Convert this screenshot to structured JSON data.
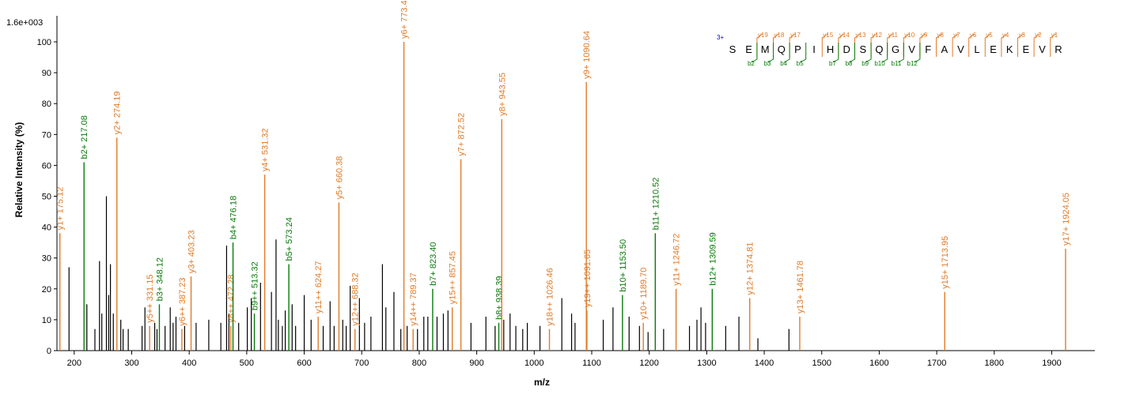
{
  "colors": {
    "y_ion": "#e07b28",
    "b_ion": "#0a7a0a",
    "unassigned": "#000000",
    "charge": "#0000cc"
  },
  "chart_data": {
    "type": "bar",
    "max_intensity_label": "1.6e+003",
    "xlabel": "m/z",
    "ylabel": "Relative  Intensity (%)",
    "xlim": [
      170,
      1975
    ],
    "ylim": [
      0,
      100
    ],
    "x_ticks": [
      200,
      300,
      400,
      500,
      600,
      700,
      800,
      900,
      1000,
      1100,
      1200,
      1300,
      1400,
      1500,
      1600,
      1700,
      1800,
      1900
    ],
    "y_ticks": [
      0,
      10,
      20,
      30,
      40,
      50,
      60,
      70,
      80,
      90,
      100
    ],
    "annotated_peaks": [
      {
        "label": "y1+ 175.12",
        "mz": 175.12,
        "intensity": 38,
        "ion": "y"
      },
      {
        "label": "b2+ 217.08",
        "mz": 217.08,
        "intensity": 61,
        "ion": "b"
      },
      {
        "label": "y2+ 274.19",
        "mz": 274.19,
        "intensity": 69,
        "ion": "y"
      },
      {
        "label": "y5++ 331.15",
        "mz": 331.15,
        "intensity": 8,
        "ion": "y"
      },
      {
        "label": "b3+ 348.12",
        "mz": 348.12,
        "intensity": 15,
        "ion": "b"
      },
      {
        "label": "y6++ 387.23",
        "mz": 387.23,
        "intensity": 7,
        "ion": "y"
      },
      {
        "label": "y3+ 403.23",
        "mz": 403.23,
        "intensity": 24,
        "ion": "y"
      },
      {
        "label": "y8++ 472.28",
        "mz": 472.28,
        "intensity": 8,
        "ion": "y"
      },
      {
        "label": "b4+ 476.18",
        "mz": 476.18,
        "intensity": 35,
        "ion": "b"
      },
      {
        "label": "b9++ 513.32",
        "mz": 513.32,
        "intensity": 12,
        "ion": "b"
      },
      {
        "label": "y4+ 531.32",
        "mz": 531.32,
        "intensity": 57,
        "ion": "y"
      },
      {
        "label": "b5+ 573.24",
        "mz": 573.24,
        "intensity": 28,
        "ion": "b"
      },
      {
        "label": "y11++ 624.27",
        "mz": 624.27,
        "intensity": 11,
        "ion": "y"
      },
      {
        "label": "y5+ 660.38",
        "mz": 660.38,
        "intensity": 48,
        "ion": "y"
      },
      {
        "label": "y12++ 688.32",
        "mz": 688.32,
        "intensity": 7,
        "ion": "y"
      },
      {
        "label": "y6+ 773.4",
        "mz": 773.4,
        "intensity": 100,
        "ion": "y"
      },
      {
        "label": "y14++ 789.37",
        "mz": 789.37,
        "intensity": 7,
        "ion": "y"
      },
      {
        "label": "b7+ 823.40",
        "mz": 823.4,
        "intensity": 20,
        "ion": "b"
      },
      {
        "label": "y15++ 857.45",
        "mz": 857.45,
        "intensity": 14,
        "ion": "y"
      },
      {
        "label": "y7+ 872.52",
        "mz": 872.52,
        "intensity": 62,
        "ion": "y"
      },
      {
        "label": "b8+ 938.39",
        "mz": 938.39,
        "intensity": 9,
        "ion": "b"
      },
      {
        "label": "y8+ 943.55",
        "mz": 943.55,
        "intensity": 75,
        "ion": "y"
      },
      {
        "label": "y18++ 1026.46",
        "mz": 1026.46,
        "intensity": 7,
        "ion": "y"
      },
      {
        "label": "y9+ 1090.64",
        "mz": 1090.64,
        "intensity": 87,
        "ion": "y"
      },
      {
        "label": "y19++ 1091.65",
        "mz": 1091.65,
        "intensity": 13,
        "ion": "y"
      },
      {
        "label": "b10+ 1153.50",
        "mz": 1153.5,
        "intensity": 18,
        "ion": "b"
      },
      {
        "label": "y10+ 1189.70",
        "mz": 1189.7,
        "intensity": 9,
        "ion": "y"
      },
      {
        "label": "b11+ 1210.52",
        "mz": 1210.52,
        "intensity": 38,
        "ion": "b"
      },
      {
        "label": "y11+ 1246.72",
        "mz": 1246.72,
        "intensity": 20,
        "ion": "y"
      },
      {
        "label": "b12+ 1309.59",
        "mz": 1309.59,
        "intensity": 20,
        "ion": "b"
      },
      {
        "label": "y12+ 1374.81",
        "mz": 1374.81,
        "intensity": 17,
        "ion": "y"
      },
      {
        "label": "y13+ 1461.78",
        "mz": 1461.78,
        "intensity": 11,
        "ion": "y"
      },
      {
        "label": "y15+ 1713.95",
        "mz": 1713.95,
        "intensity": 19,
        "ion": "y"
      },
      {
        "label": "y17+ 1924.05",
        "mz": 1924.05,
        "intensity": 33,
        "ion": "y"
      }
    ],
    "unassigned_peaks": [
      {
        "mz": 191,
        "intensity": 27
      },
      {
        "mz": 222,
        "intensity": 15
      },
      {
        "mz": 236,
        "intensity": 7
      },
      {
        "mz": 244,
        "intensity": 29
      },
      {
        "mz": 248,
        "intensity": 12
      },
      {
        "mz": 256,
        "intensity": 50
      },
      {
        "mz": 260,
        "intensity": 18
      },
      {
        "mz": 263,
        "intensity": 28
      },
      {
        "mz": 268,
        "intensity": 12
      },
      {
        "mz": 281,
        "intensity": 10
      },
      {
        "mz": 285,
        "intensity": 7
      },
      {
        "mz": 294,
        "intensity": 7
      },
      {
        "mz": 318,
        "intensity": 8
      },
      {
        "mz": 323,
        "intensity": 14
      },
      {
        "mz": 340,
        "intensity": 9
      },
      {
        "mz": 344,
        "intensity": 7
      },
      {
        "mz": 358,
        "intensity": 8
      },
      {
        "mz": 367,
        "intensity": 14
      },
      {
        "mz": 372,
        "intensity": 9
      },
      {
        "mz": 377,
        "intensity": 11
      },
      {
        "mz": 392,
        "intensity": 8
      },
      {
        "mz": 412,
        "intensity": 9
      },
      {
        "mz": 434,
        "intensity": 10
      },
      {
        "mz": 455,
        "intensity": 9
      },
      {
        "mz": 465,
        "intensity": 34
      },
      {
        "mz": 469,
        "intensity": 12
      },
      {
        "mz": 486,
        "intensity": 9
      },
      {
        "mz": 501,
        "intensity": 14
      },
      {
        "mz": 508,
        "intensity": 17
      },
      {
        "mz": 524,
        "intensity": 22
      },
      {
        "mz": 543,
        "intensity": 19
      },
      {
        "mz": 551,
        "intensity": 36
      },
      {
        "mz": 555,
        "intensity": 10
      },
      {
        "mz": 562,
        "intensity": 8
      },
      {
        "mz": 567,
        "intensity": 13
      },
      {
        "mz": 579,
        "intensity": 15
      },
      {
        "mz": 585,
        "intensity": 8
      },
      {
        "mz": 600,
        "intensity": 18
      },
      {
        "mz": 612,
        "intensity": 10
      },
      {
        "mz": 633,
        "intensity": 8
      },
      {
        "mz": 645,
        "intensity": 16
      },
      {
        "mz": 652,
        "intensity": 8
      },
      {
        "mz": 667,
        "intensity": 10
      },
      {
        "mz": 673,
        "intensity": 8
      },
      {
        "mz": 680,
        "intensity": 21
      },
      {
        "mz": 696,
        "intensity": 17
      },
      {
        "mz": 705,
        "intensity": 9
      },
      {
        "mz": 716,
        "intensity": 11
      },
      {
        "mz": 736,
        "intensity": 28
      },
      {
        "mz": 742,
        "intensity": 14
      },
      {
        "mz": 756,
        "intensity": 19
      },
      {
        "mz": 768,
        "intensity": 7
      },
      {
        "mz": 779,
        "intensity": 8
      },
      {
        "mz": 797,
        "intensity": 7
      },
      {
        "mz": 808,
        "intensity": 11
      },
      {
        "mz": 815,
        "intensity": 11
      },
      {
        "mz": 831,
        "intensity": 11
      },
      {
        "mz": 842,
        "intensity": 12
      },
      {
        "mz": 850,
        "intensity": 13
      },
      {
        "mz": 890,
        "intensity": 9
      },
      {
        "mz": 916,
        "intensity": 11
      },
      {
        "mz": 932,
        "intensity": 8
      },
      {
        "mz": 947,
        "intensity": 10
      },
      {
        "mz": 958,
        "intensity": 12
      },
      {
        "mz": 968,
        "intensity": 8
      },
      {
        "mz": 980,
        "intensity": 7
      },
      {
        "mz": 988,
        "intensity": 9
      },
      {
        "mz": 1010,
        "intensity": 8
      },
      {
        "mz": 1048,
        "intensity": 17
      },
      {
        "mz": 1065,
        "intensity": 12
      },
      {
        "mz": 1071,
        "intensity": 9
      },
      {
        "mz": 1120,
        "intensity": 10
      },
      {
        "mz": 1137,
        "intensity": 14
      },
      {
        "mz": 1165,
        "intensity": 11
      },
      {
        "mz": 1183,
        "intensity": 8
      },
      {
        "mz": 1198,
        "intensity": 6
      },
      {
        "mz": 1225,
        "intensity": 7
      },
      {
        "mz": 1270,
        "intensity": 8
      },
      {
        "mz": 1283,
        "intensity": 10
      },
      {
        "mz": 1290,
        "intensity": 14
      },
      {
        "mz": 1298,
        "intensity": 9
      },
      {
        "mz": 1333,
        "intensity": 8
      },
      {
        "mz": 1356,
        "intensity": 11
      },
      {
        "mz": 1389,
        "intensity": 4
      },
      {
        "mz": 1443,
        "intensity": 7
      }
    ],
    "sequence": {
      "charge": "3+",
      "residues": [
        "S",
        "E",
        "M",
        "Q",
        "P",
        "I",
        "H",
        "D",
        "S",
        "Q",
        "G",
        "V",
        "F",
        "A",
        "V",
        "L",
        "E",
        "K",
        "E",
        "V",
        "R"
      ],
      "y_ions": [
        {
          "after": 2,
          "label": "y19"
        },
        {
          "after": 3,
          "label": "y18"
        },
        {
          "after": 4,
          "label": "y17"
        },
        {
          "after": 6,
          "label": "y15"
        },
        {
          "after": 7,
          "label": "y14"
        },
        {
          "after": 8,
          "label": "y13"
        },
        {
          "after": 9,
          "label": "y12"
        },
        {
          "after": 10,
          "label": "y11"
        },
        {
          "after": 11,
          "label": "y10"
        },
        {
          "after": 12,
          "label": "y9"
        },
        {
          "after": 13,
          "label": "y8"
        },
        {
          "after": 14,
          "label": "y7"
        },
        {
          "after": 15,
          "label": "y6"
        },
        {
          "after": 16,
          "label": "y5"
        },
        {
          "after": 17,
          "label": "y4"
        },
        {
          "after": 18,
          "label": "y3"
        },
        {
          "after": 19,
          "label": "y2"
        },
        {
          "after": 20,
          "label": "y1"
        }
      ],
      "b_ions": [
        {
          "after": 2,
          "label": "b2"
        },
        {
          "after": 3,
          "label": "b3"
        },
        {
          "after": 4,
          "label": "b4"
        },
        {
          "after": 5,
          "label": "b5"
        },
        {
          "after": 7,
          "label": "b7"
        },
        {
          "after": 8,
          "label": "b8"
        },
        {
          "after": 9,
          "label": "b9"
        },
        {
          "after": 10,
          "label": "b10"
        },
        {
          "after": 11,
          "label": "b11"
        },
        {
          "after": 12,
          "label": "b12"
        }
      ]
    }
  }
}
